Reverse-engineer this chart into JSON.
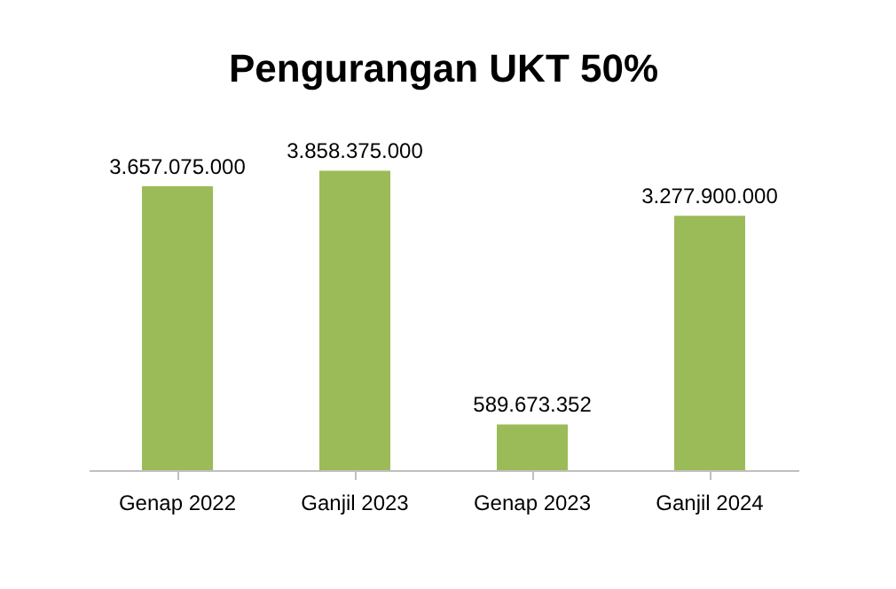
{
  "chart_data": {
    "type": "bar",
    "title": "Pengurangan UKT 50%",
    "categories": [
      "Genap 2022",
      "Ganjil 2023",
      "Genap 2023",
      "Ganjil 2024"
    ],
    "values": [
      3657075000,
      3858375000,
      589673352,
      3277900000
    ],
    "value_labels": [
      "3.657.075.000",
      "3.858.375.000",
      "589.673.352",
      "3.277.900.000"
    ],
    "color": "#9bbb59",
    "grid": false
  }
}
